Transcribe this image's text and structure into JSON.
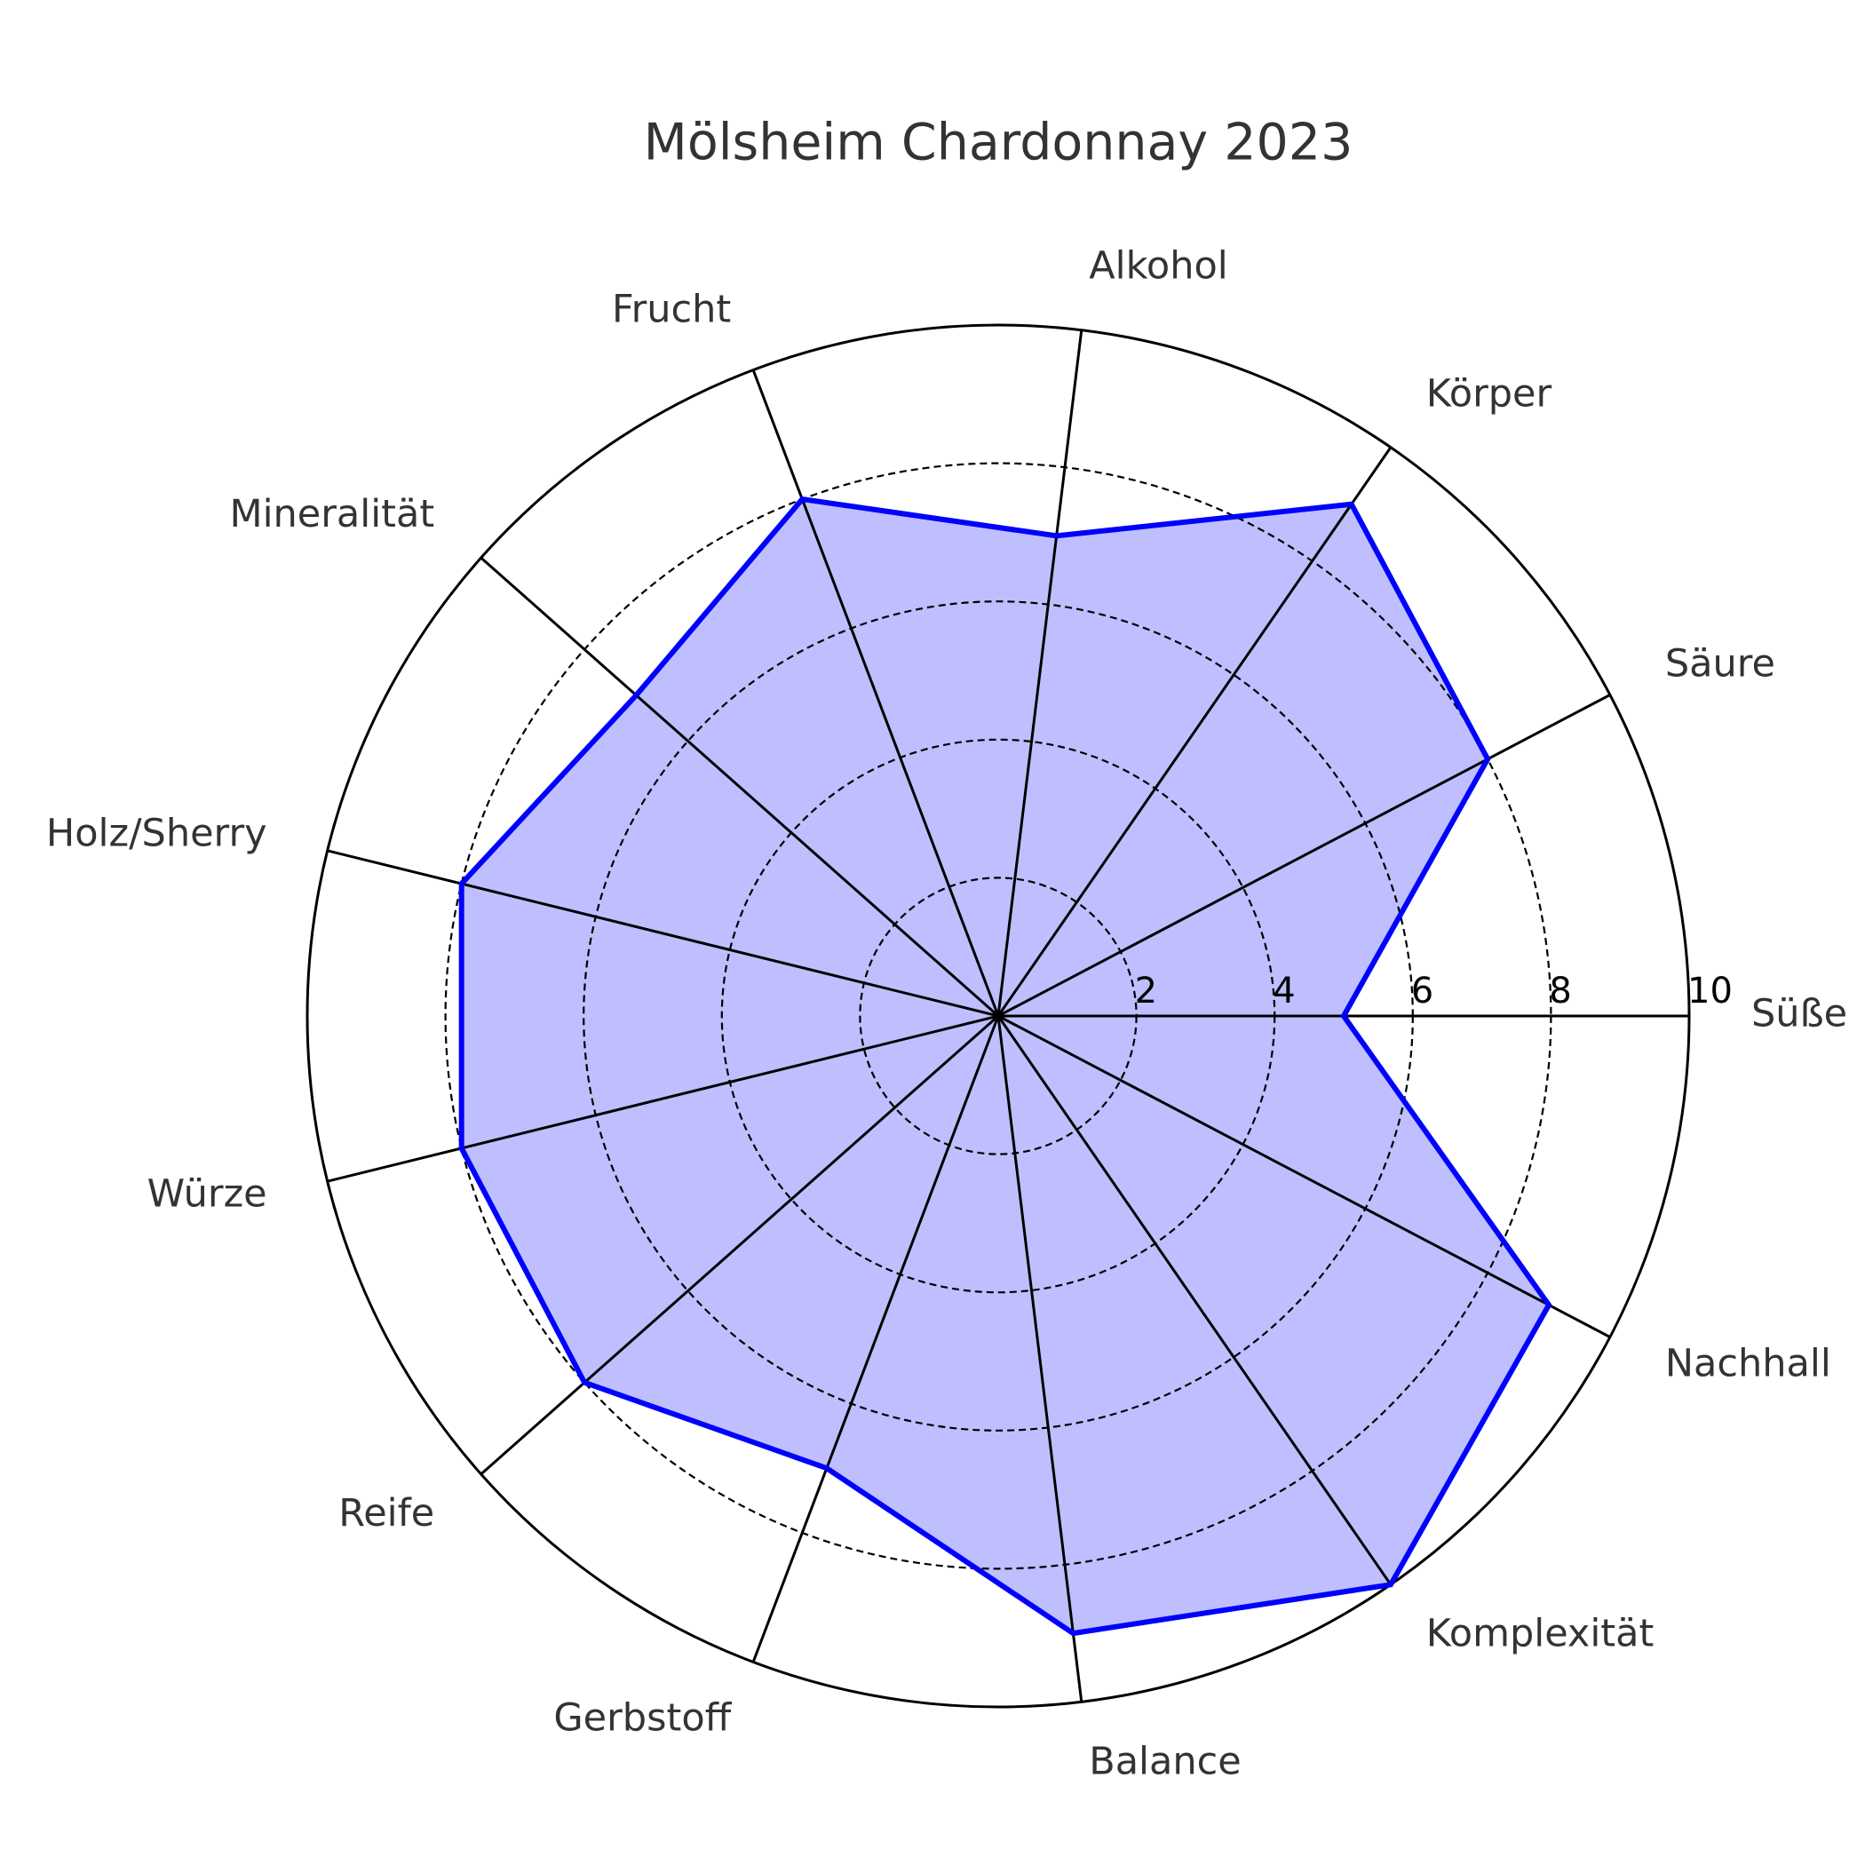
{
  "chart_data": {
    "type": "radar",
    "title": "Mölsheim Chardonnay 2023",
    "categories": [
      "Süße",
      "Säure",
      "Körper",
      "Alkohol",
      "Frucht",
      "Mineralität",
      "Holz/Sherry",
      "Würze",
      "Reife",
      "Gerbstoff",
      "Balance",
      "Komplexität",
      "Nachhall"
    ],
    "values": [
      5,
      8,
      9,
      7,
      8,
      7,
      8,
      8,
      8,
      7,
      9,
      10,
      9
    ],
    "color": "#0000ff",
    "fill": "#bfbfff",
    "ylim": [
      0,
      10
    ],
    "yticks": [
      2,
      4,
      6,
      8,
      10
    ],
    "grid": true
  }
}
